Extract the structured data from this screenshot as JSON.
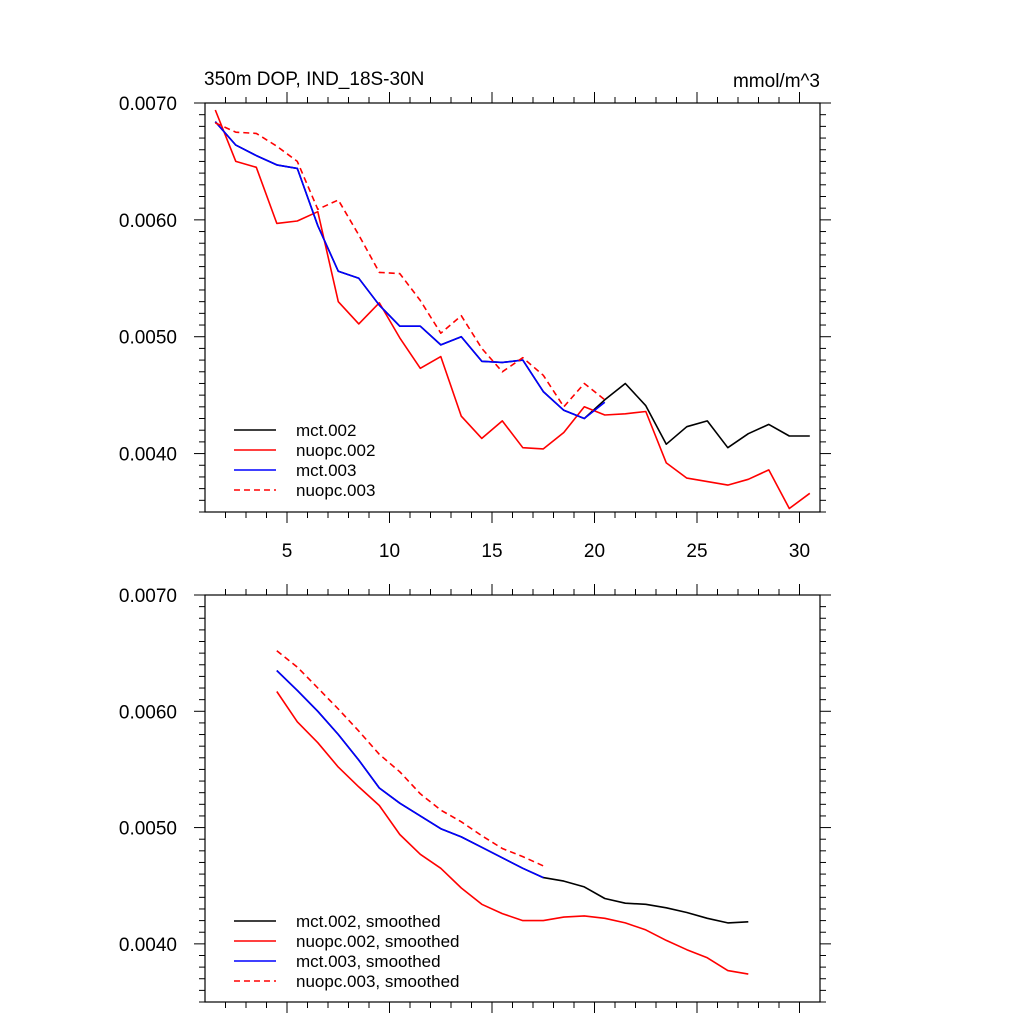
{
  "chart_data": [
    {
      "type": "line",
      "title": "350m DOP, IND_18S-30N",
      "units": "mmol/m^3",
      "xlabel": "",
      "ylabel": "",
      "xlim": [
        1,
        31
      ],
      "ylim": [
        0.0035,
        0.007
      ],
      "xticks": [
        5,
        10,
        15,
        20,
        25,
        30
      ],
      "xtick_labels": [
        "5",
        "10",
        "15",
        "20",
        "25",
        "30"
      ],
      "yticks": [
        0.004,
        0.005,
        0.006,
        0.007
      ],
      "ytick_labels": [
        "0.0040",
        "0.0050",
        "0.0060",
        "0.0070"
      ],
      "grid": false,
      "legend_position": "bottom-left",
      "series": [
        {
          "name": "mct.002",
          "color": "#000000",
          "dash": "solid",
          "x": [
            1.5,
            2.5,
            3.5,
            4.5,
            5.5,
            6.5,
            7.5,
            8.5,
            9.5,
            10.5,
            11.5,
            12.5,
            13.5,
            14.5,
            15.5,
            16.5,
            17.5,
            18.5,
            19.5,
            20.5,
            21.5,
            22.5,
            23.5,
            24.5,
            25.5,
            26.5,
            27.5,
            28.5,
            29.5,
            30.5
          ],
          "values": [
            0.00684,
            0.00664,
            0.00655,
            0.00647,
            0.00644,
            0.00595,
            0.00556,
            0.0055,
            0.00527,
            0.00509,
            0.00509,
            0.00493,
            0.005,
            0.00479,
            0.00478,
            0.0048,
            0.00453,
            0.00437,
            0.0043,
            0.00446,
            0.0046,
            0.00441,
            0.00408,
            0.00423,
            0.00428,
            0.00405,
            0.00417,
            0.00425,
            0.00415,
            0.00415
          ]
        },
        {
          "name": "nuopc.002",
          "color": "#ff0000",
          "dash": "solid",
          "x": [
            1.5,
            2.5,
            3.5,
            4.5,
            5.5,
            6.5,
            7.5,
            8.5,
            9.5,
            10.5,
            11.5,
            12.5,
            13.5,
            14.5,
            15.5,
            16.5,
            17.5,
            18.5,
            19.5,
            20.5,
            21.5,
            22.5,
            23.5,
            24.5,
            25.5,
            26.5,
            27.5,
            28.5,
            29.5,
            30.5
          ],
          "values": [
            0.00694,
            0.0065,
            0.00645,
            0.00597,
            0.00599,
            0.00607,
            0.0053,
            0.00511,
            0.00529,
            0.00499,
            0.00473,
            0.00483,
            0.00432,
            0.00413,
            0.00428,
            0.00405,
            0.00404,
            0.00418,
            0.0044,
            0.00433,
            0.00434,
            0.00436,
            0.00392,
            0.00379,
            0.00376,
            0.00373,
            0.00378,
            0.00386,
            0.00353,
            0.00366
          ]
        },
        {
          "name": "mct.003",
          "color": "#0000ff",
          "dash": "solid",
          "x": [
            1.5,
            2.5,
            3.5,
            4.5,
            5.5,
            6.5,
            7.5,
            8.5,
            9.5,
            10.5,
            11.5,
            12.5,
            13.5,
            14.5,
            15.5,
            16.5,
            17.5,
            18.5,
            19.5,
            20.5
          ],
          "values": [
            0.00684,
            0.00664,
            0.00655,
            0.00647,
            0.00644,
            0.00595,
            0.00556,
            0.0055,
            0.00527,
            0.00509,
            0.00509,
            0.00493,
            0.005,
            0.00479,
            0.00478,
            0.0048,
            0.00453,
            0.00437,
            0.0043,
            0.00444
          ]
        },
        {
          "name": "nuopc.003",
          "color": "#ff0000",
          "dash": "dashed",
          "x": [
            1.5,
            2.5,
            3.5,
            4.5,
            5.5,
            6.5,
            7.5,
            8.5,
            9.5,
            10.5,
            11.5,
            12.5,
            13.5,
            14.5,
            15.5,
            16.5,
            17.5,
            18.5,
            19.5,
            20.5
          ],
          "values": [
            0.00683,
            0.00675,
            0.00674,
            0.00663,
            0.0065,
            0.00609,
            0.00617,
            0.00587,
            0.00555,
            0.00554,
            0.00531,
            0.00503,
            0.00518,
            0.0049,
            0.0047,
            0.00482,
            0.00467,
            0.0044,
            0.0046,
            0.00446
          ]
        }
      ]
    },
    {
      "type": "line",
      "title": "",
      "xlabel": "",
      "ylabel": "",
      "xlim": [
        1,
        31
      ],
      "ylim": [
        0.0035,
        0.007
      ],
      "xticks": [
        5,
        10,
        15,
        20,
        25,
        30
      ],
      "xtick_labels": [],
      "yticks": [
        0.004,
        0.005,
        0.006,
        0.007
      ],
      "ytick_labels": [
        "0.0040",
        "0.0050",
        "0.0060",
        "0.0070"
      ],
      "grid": false,
      "legend_position": "bottom-left",
      "series": [
        {
          "name": "mct.002, smoothed",
          "color": "#000000",
          "dash": "solid",
          "x": [
            4.5,
            5.5,
            6.5,
            7.5,
            8.5,
            9.5,
            10.5,
            11.5,
            12.5,
            13.5,
            14.5,
            15.5,
            16.5,
            17.5,
            18.5,
            19.5,
            20.5,
            21.5,
            22.5,
            23.5,
            24.5,
            25.5,
            26.5,
            27.5
          ],
          "values": [
            0.00635,
            0.00618,
            0.006,
            0.0058,
            0.00558,
            0.00534,
            0.00521,
            0.0051,
            0.00499,
            0.00492,
            0.00483,
            0.00474,
            0.00465,
            0.00457,
            0.00454,
            0.00449,
            0.00439,
            0.00435,
            0.00434,
            0.00431,
            0.00427,
            0.00422,
            0.00418,
            0.00419
          ]
        },
        {
          "name": "nuopc.002, smoothed",
          "color": "#ff0000",
          "dash": "solid",
          "x": [
            4.5,
            5.5,
            6.5,
            7.5,
            8.5,
            9.5,
            10.5,
            11.5,
            12.5,
            13.5,
            14.5,
            15.5,
            16.5,
            17.5,
            18.5,
            19.5,
            20.5,
            21.5,
            22.5,
            23.5,
            24.5,
            25.5,
            26.5,
            27.5
          ],
          "values": [
            0.00617,
            0.00591,
            0.00573,
            0.00552,
            0.00535,
            0.00519,
            0.00494,
            0.00477,
            0.00465,
            0.00448,
            0.00434,
            0.00426,
            0.0042,
            0.0042,
            0.00423,
            0.00424,
            0.00422,
            0.00418,
            0.00412,
            0.00403,
            0.00395,
            0.00388,
            0.00377,
            0.00374
          ]
        },
        {
          "name": "mct.003, smoothed",
          "color": "#0000ff",
          "dash": "solid",
          "x": [
            4.5,
            5.5,
            6.5,
            7.5,
            8.5,
            9.5,
            10.5,
            11.5,
            12.5,
            13.5,
            14.5,
            15.5,
            16.5,
            17.5
          ],
          "values": [
            0.00635,
            0.00618,
            0.006,
            0.0058,
            0.00558,
            0.00534,
            0.00521,
            0.0051,
            0.00499,
            0.00492,
            0.00483,
            0.00474,
            0.00465,
            0.00457
          ]
        },
        {
          "name": "nuopc.003, smoothed",
          "color": "#ff0000",
          "dash": "dashed",
          "x": [
            4.5,
            5.5,
            6.5,
            7.5,
            8.5,
            9.5,
            10.5,
            11.5,
            12.5,
            13.5,
            14.5,
            15.5,
            16.5,
            17.5
          ],
          "values": [
            0.00652,
            0.00638,
            0.0062,
            0.00602,
            0.00583,
            0.00563,
            0.00548,
            0.00529,
            0.00515,
            0.00505,
            0.00493,
            0.00482,
            0.00475,
            0.00467
          ]
        }
      ]
    }
  ]
}
